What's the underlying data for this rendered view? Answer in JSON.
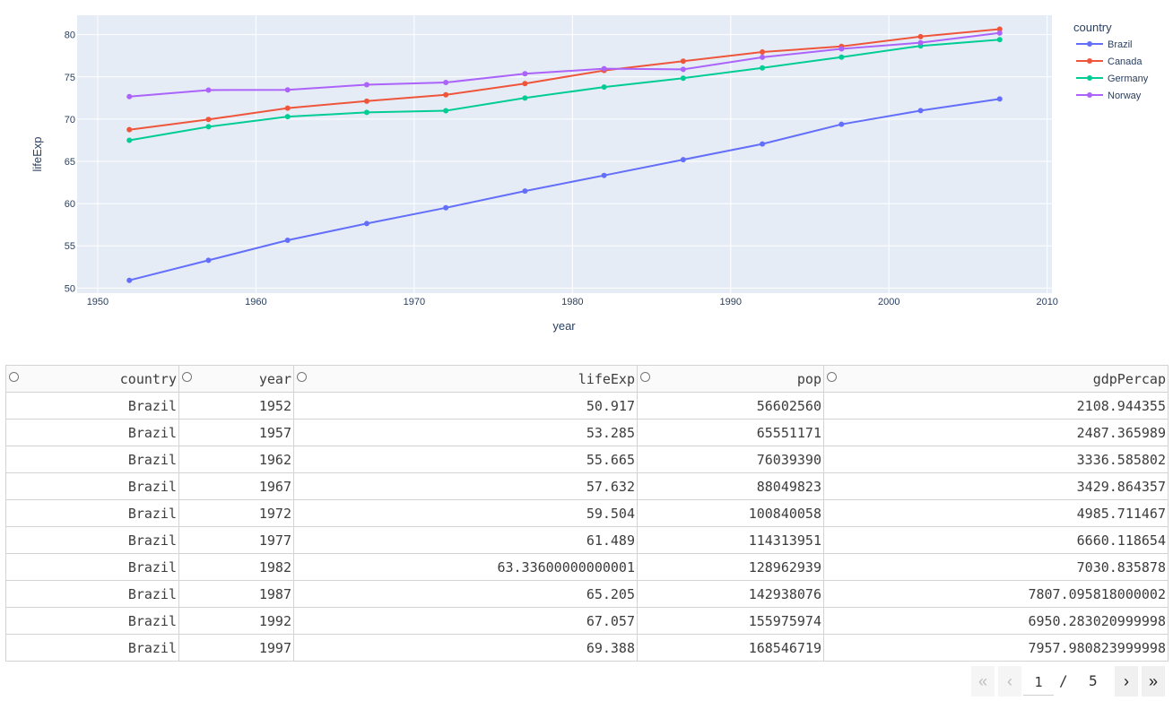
{
  "chart_data": {
    "type": "line",
    "xlabel": "year",
    "ylabel": "lifeExp",
    "xlim": [
      1948.7,
      2010.3
    ],
    "ylim": [
      49.4,
      82.3
    ],
    "x_ticks": [
      1950,
      1960,
      1970,
      1980,
      1990,
      2000,
      2010
    ],
    "y_ticks": [
      50,
      55,
      60,
      65,
      70,
      75,
      80
    ],
    "legend_title": "country",
    "legend_position": "top-right",
    "grid": true,
    "x": [
      1952,
      1957,
      1962,
      1967,
      1972,
      1977,
      1982,
      1987,
      1992,
      1997,
      2002,
      2007
    ],
    "series": [
      {
        "name": "Brazil",
        "color": "#636efa",
        "values": [
          50.917,
          53.285,
          55.665,
          57.632,
          59.504,
          61.489,
          63.336,
          65.205,
          67.057,
          69.388,
          71.006,
          72.39
        ]
      },
      {
        "name": "Canada",
        "color": "#ef553b",
        "values": [
          68.75,
          69.96,
          71.3,
          72.13,
          72.88,
          74.21,
          75.76,
          76.86,
          77.95,
          78.61,
          79.77,
          80.653
        ]
      },
      {
        "name": "Germany",
        "color": "#00cc96",
        "values": [
          67.5,
          69.1,
          70.3,
          70.8,
          71.0,
          72.5,
          73.8,
          74.847,
          76.07,
          77.34,
          78.67,
          79.406
        ]
      },
      {
        "name": "Norway",
        "color": "#ab63fa",
        "values": [
          72.67,
          73.44,
          73.47,
          74.08,
          74.34,
          75.37,
          75.97,
          75.89,
          77.32,
          78.32,
          79.05,
          80.196
        ]
      }
    ]
  },
  "table": {
    "columns": [
      "country",
      "year",
      "lifeExp",
      "pop",
      "gdpPercap"
    ],
    "rows": [
      [
        "Brazil",
        "1952",
        "50.917",
        "56602560",
        "2108.944355"
      ],
      [
        "Brazil",
        "1957",
        "53.285",
        "65551171",
        "2487.365989"
      ],
      [
        "Brazil",
        "1962",
        "55.665",
        "76039390",
        "3336.585802"
      ],
      [
        "Brazil",
        "1967",
        "57.632",
        "88049823",
        "3429.864357"
      ],
      [
        "Brazil",
        "1972",
        "59.504",
        "100840058",
        "4985.711467"
      ],
      [
        "Brazil",
        "1977",
        "61.489",
        "114313951",
        "6660.118654"
      ],
      [
        "Brazil",
        "1982",
        "63.33600000000001",
        "128962939",
        "7030.835878"
      ],
      [
        "Brazil",
        "1987",
        "65.205",
        "142938076",
        "7807.095818000002"
      ],
      [
        "Brazil",
        "1992",
        "67.057",
        "155975974",
        "6950.283020999998"
      ],
      [
        "Brazil",
        "1997",
        "69.388",
        "168546719",
        "7957.980823999998"
      ]
    ]
  },
  "pager": {
    "first_icon": "double-chevron-left-icon",
    "prev_icon": "chevron-left-icon",
    "next_icon": "chevron-right-icon",
    "last_icon": "double-chevron-right-icon",
    "current_page": "1",
    "separator": "/",
    "total_pages": "5"
  }
}
